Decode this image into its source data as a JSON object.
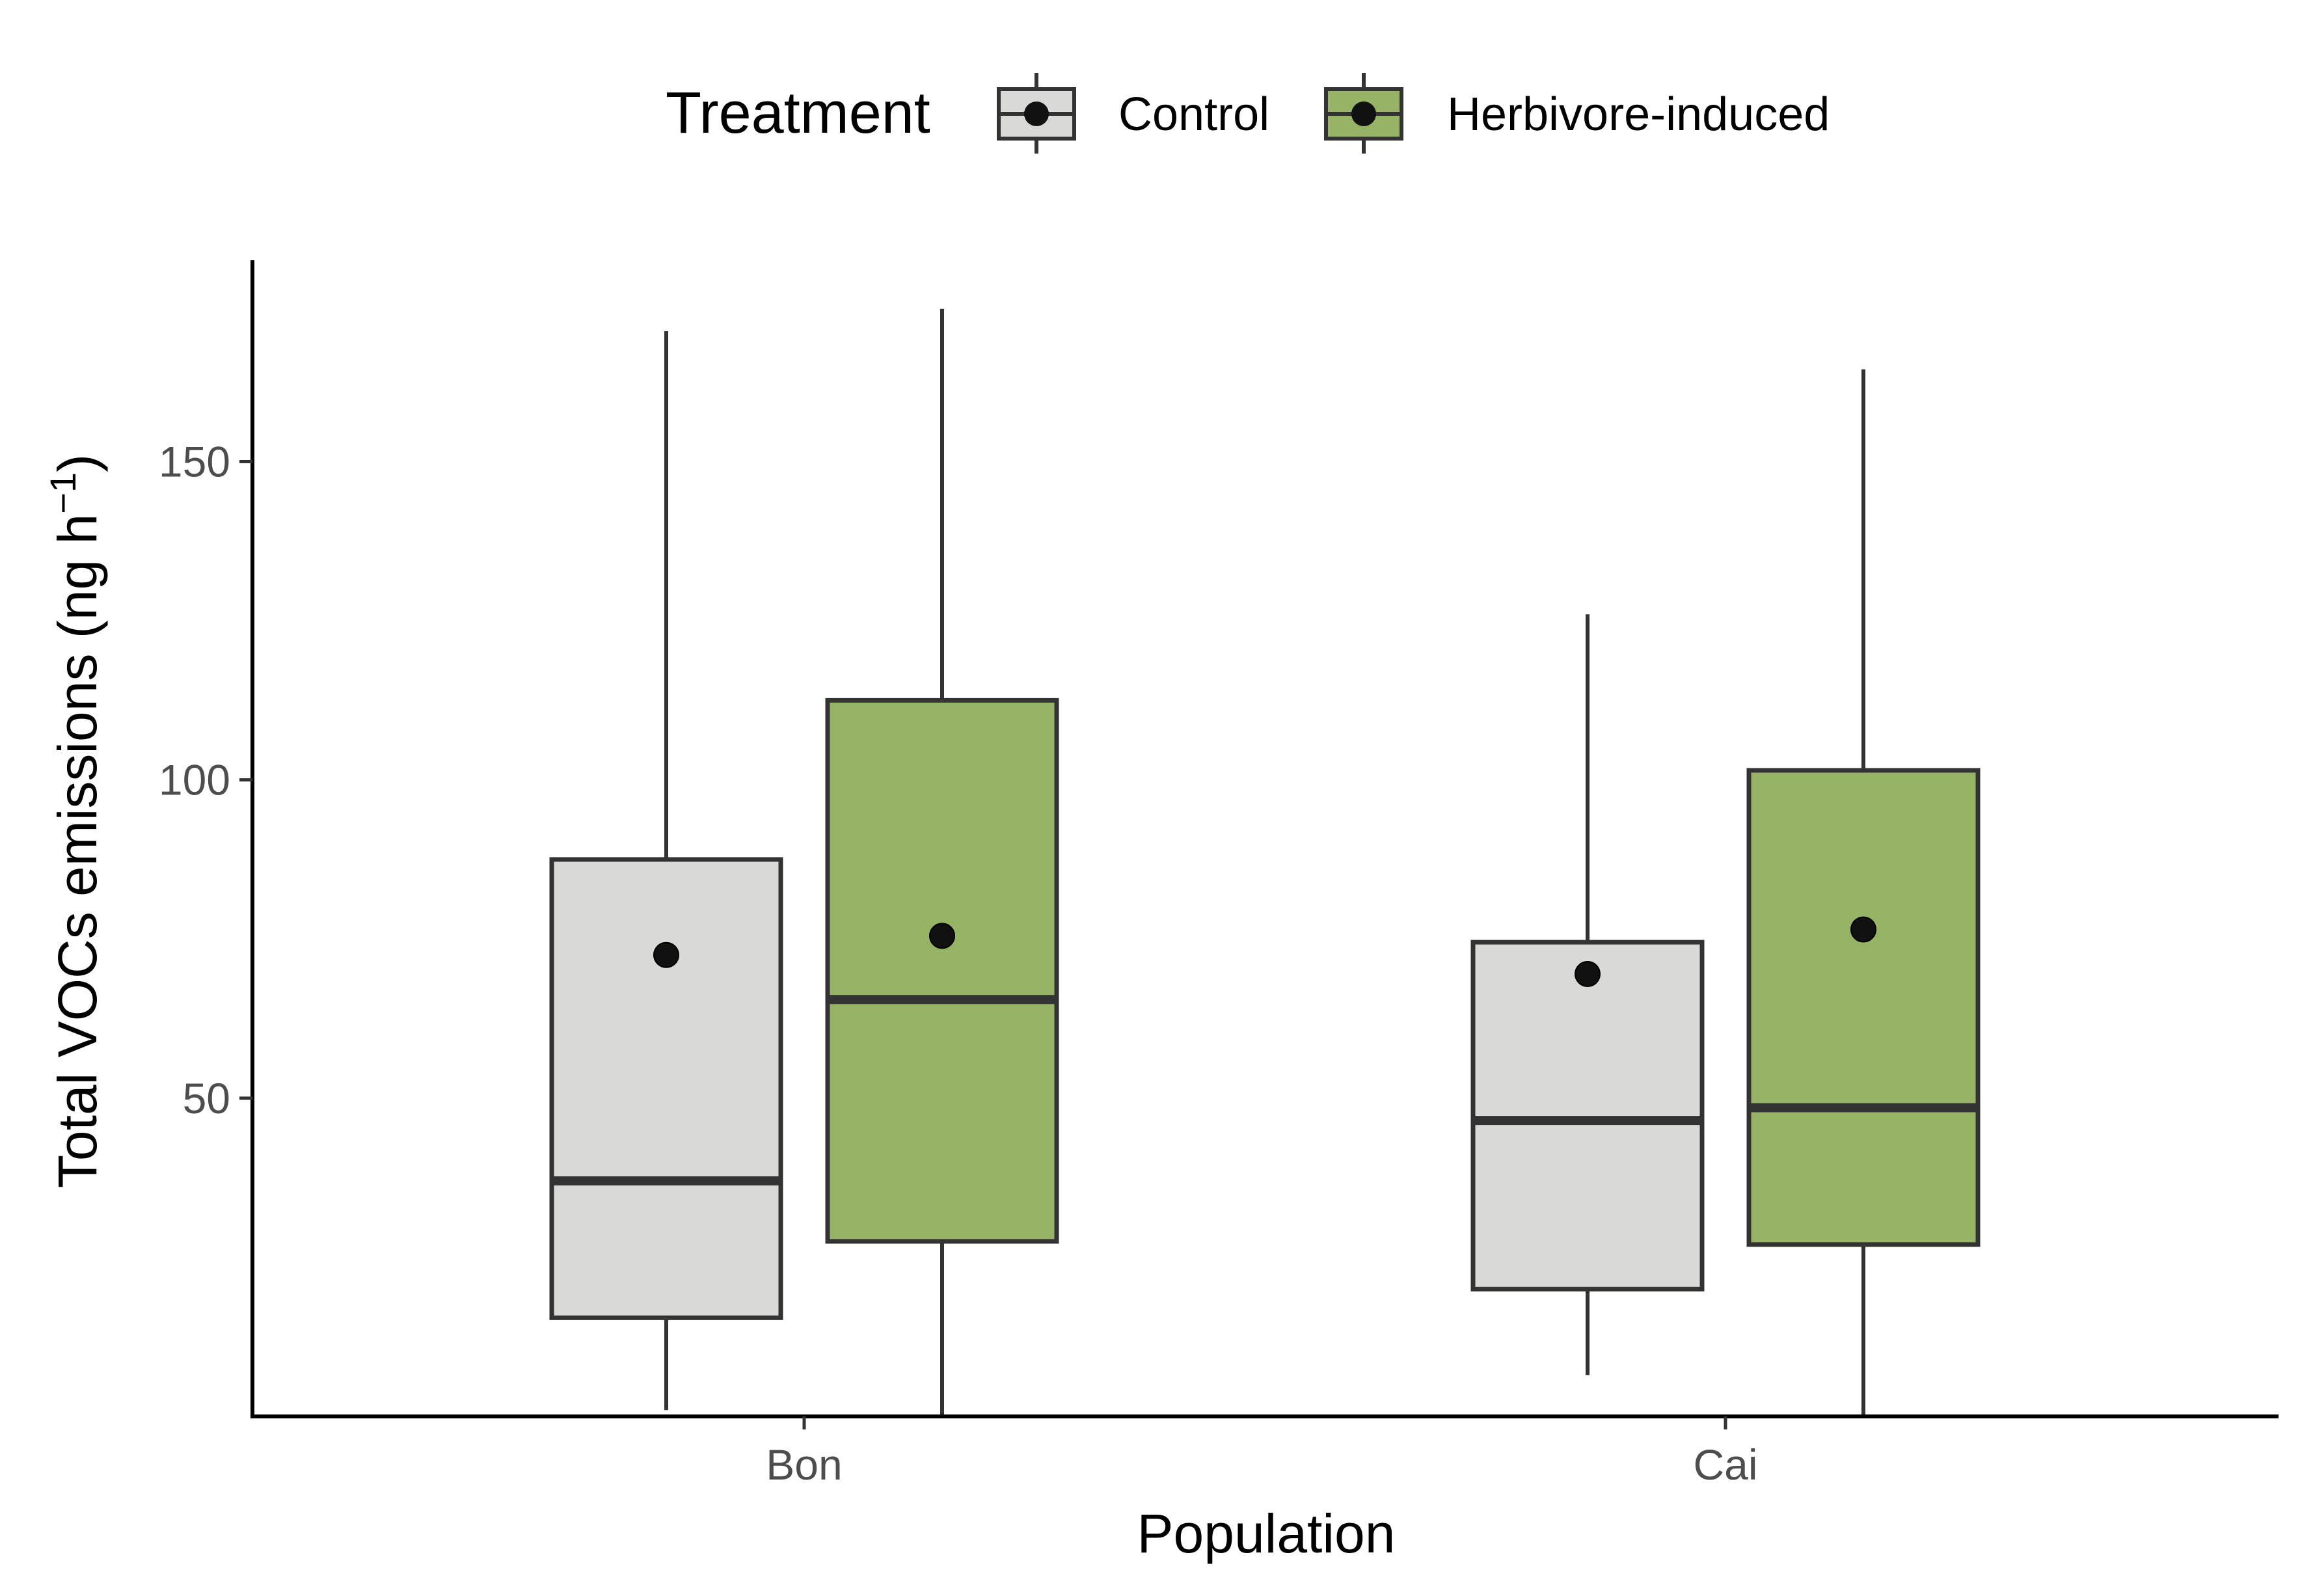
{
  "chart_data": {
    "type": "boxplot",
    "xlabel": "Population",
    "ylabel_main": "Total VOCs emissions (ng h",
    "ylabel_sup": "−1",
    "ylabel_close": ")",
    "categories": [
      "Bon",
      "Cai"
    ],
    "ylim": [
      0,
      180
    ],
    "yticks": [
      50,
      100,
      150
    ],
    "legend": {
      "title": "Treatment",
      "position": "top"
    },
    "series": [
      {
        "name": "Control",
        "color": "#d9d9d8",
        "boxes": [
          {
            "category": "Bon",
            "whisker_low": 1,
            "q1": 15.5,
            "median": 37,
            "q3": 87.5,
            "whisker_high": 170.5,
            "mean": 72.5
          },
          {
            "category": "Cai",
            "whisker_low": 6.5,
            "q1": 20,
            "median": 46.5,
            "q3": 74.5,
            "whisker_high": 126,
            "mean": 69.5
          }
        ]
      },
      {
        "name": "Herbivore-induced",
        "color": "#97b466",
        "boxes": [
          {
            "category": "Bon",
            "whisker_low": 0,
            "q1": 27.5,
            "median": 65.5,
            "q3": 112.5,
            "whisker_high": 174,
            "mean": 75.5
          },
          {
            "category": "Cai",
            "whisker_low": 0,
            "q1": 27,
            "median": 48.5,
            "q3": 101.5,
            "whisker_high": 164.5,
            "mean": 76.5
          }
        ]
      }
    ]
  }
}
